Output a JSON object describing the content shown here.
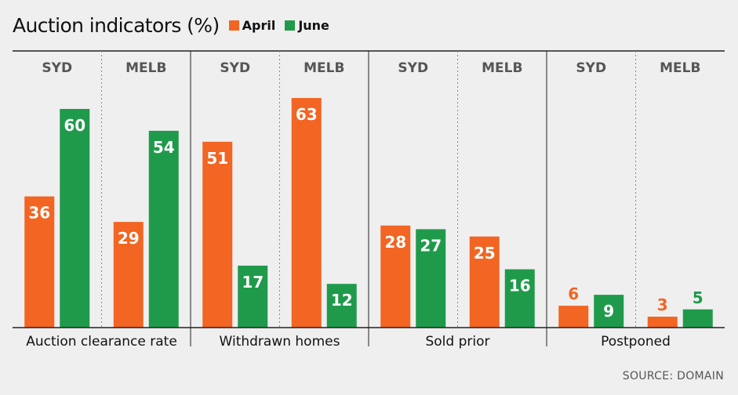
{
  "chart_data": {
    "type": "bar",
    "title": "Auction indicators (%)",
    "series_names": [
      "April",
      "June"
    ],
    "colors": {
      "April": "#f26522",
      "June": "#1f9a4b"
    },
    "groups": [
      {
        "label": "Auction clearance rate",
        "cities": [
          {
            "name": "SYD",
            "values": [
              36,
              60
            ]
          },
          {
            "name": "MELB",
            "values": [
              29,
              54
            ]
          }
        ]
      },
      {
        "label": "Withdrawn homes",
        "cities": [
          {
            "name": "SYD",
            "values": [
              51,
              17
            ]
          },
          {
            "name": "MELB",
            "values": [
              63,
              12
            ]
          }
        ]
      },
      {
        "label": "Sold prior",
        "cities": [
          {
            "name": "SYD",
            "values": [
              28,
              27
            ]
          },
          {
            "name": "MELB",
            "values": [
              25,
              16
            ]
          }
        ]
      },
      {
        "label": "Postponed",
        "cities": [
          {
            "name": "SYD",
            "values": [
              6,
              9
            ]
          },
          {
            "name": "MELB",
            "values": [
              3,
              5
            ]
          }
        ]
      }
    ],
    "ylim": [
      0,
      70
    ],
    "source": "SOURCE: DOMAIN"
  }
}
